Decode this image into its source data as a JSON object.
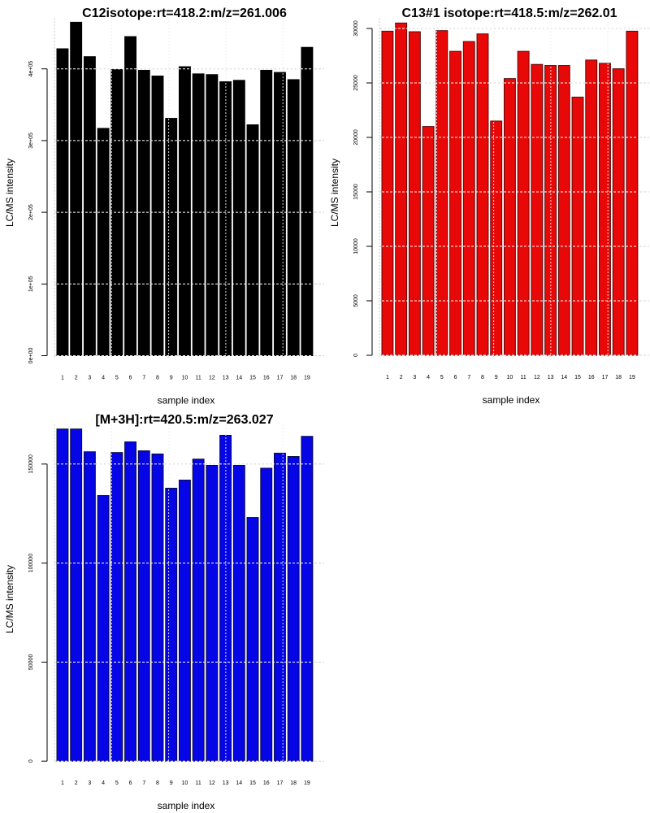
{
  "chart_data": [
    {
      "type": "bar",
      "title": "C12isotope:rt=418.2:m/z=261.006",
      "xlabel": "sample index",
      "ylabel": "LC/MS intensity",
      "categories": [
        "1",
        "2",
        "3",
        "4",
        "5",
        "6",
        "7",
        "8",
        "9",
        "10",
        "11",
        "12",
        "13",
        "14",
        "15",
        "16",
        "17",
        "18",
        "19"
      ],
      "values": [
        428000,
        465000,
        417000,
        317000,
        399000,
        445000,
        398000,
        390000,
        331000,
        403000,
        393000,
        392000,
        382000,
        384000,
        322000,
        398000,
        395000,
        385000,
        430000
      ],
      "yticks": [
        0,
        100000,
        200000,
        300000,
        400000
      ],
      "ytick_labels": [
        "0e+00",
        "1e+05",
        "2e+05",
        "3e+05",
        "4e+05"
      ],
      "ylim": [
        0,
        465000
      ],
      "grid": true,
      "bar_color": "#000000",
      "border_color": "#000000"
    },
    {
      "type": "bar",
      "title": "C13#1 isotope:rt=418.5:m/z=262.01",
      "xlabel": "sample index",
      "ylabel": "LC/MS intensity",
      "categories": [
        "1",
        "2",
        "3",
        "4",
        "5",
        "6",
        "7",
        "8",
        "9",
        "10",
        "11",
        "12",
        "13",
        "14",
        "15",
        "16",
        "17",
        "18",
        "19"
      ],
      "values": [
        29750,
        30500,
        29700,
        21000,
        29800,
        27900,
        28800,
        29500,
        21500,
        25400,
        27900,
        26700,
        26600,
        26600,
        23700,
        27100,
        26800,
        26300,
        29750
      ],
      "yticks": [
        0,
        5000,
        10000,
        15000,
        20000,
        25000,
        30000
      ],
      "ytick_labels": [
        "0",
        "5000",
        "10000",
        "15000",
        "20000",
        "25000",
        "30000"
      ],
      "ylim": [
        0,
        30500
      ],
      "grid": true,
      "bar_color": "#e80808",
      "border_color": "#5a0a0a"
    },
    {
      "type": "bar",
      "title": "[M+3H]:rt=420.5:m/z=263.027",
      "xlabel": "sample index",
      "ylabel": "LC/MS intensity",
      "categories": [
        "1",
        "2",
        "3",
        "4",
        "5",
        "6",
        "7",
        "8",
        "9",
        "10",
        "11",
        "12",
        "13",
        "14",
        "15",
        "16",
        "17",
        "18",
        "19"
      ],
      "values": [
        167700,
        167700,
        156200,
        134100,
        155800,
        161200,
        156700,
        155100,
        137800,
        141900,
        152500,
        149300,
        164500,
        149300,
        123000,
        147900,
        155500,
        153800,
        164000
      ],
      "yticks": [
        0,
        50000,
        100000,
        150000
      ],
      "ytick_labels": [
        "0",
        "50000",
        "100000",
        "150000"
      ],
      "ylim": [
        0,
        167700
      ],
      "grid": true,
      "bar_color": "#0505e6",
      "border_color": "#0a0a40"
    }
  ]
}
